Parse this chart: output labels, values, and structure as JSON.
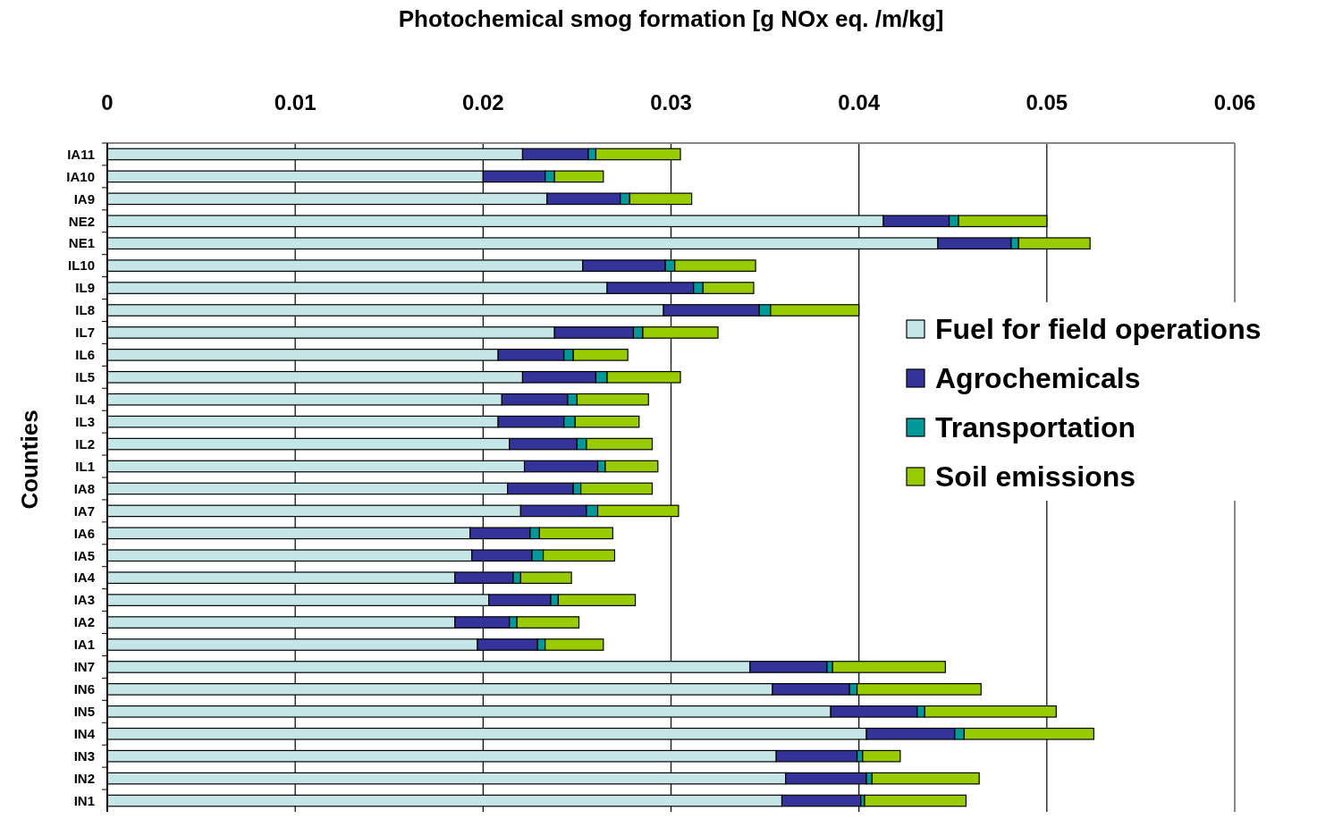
{
  "chart_data": {
    "type": "bar",
    "orientation": "horizontal",
    "stacked": true,
    "title": "Photochemical smog formation  [g NOx eq. /m/kg]",
    "ylabel": "Counties",
    "categories": [
      "IA11",
      "IA10",
      "IA9",
      "NE2",
      "NE1",
      "IL10",
      "IL9",
      "IL8",
      "IL7",
      "IL6",
      "IL5",
      "IL4",
      "IL3",
      "IL2",
      "IL1",
      "IA8",
      "IA7",
      "IA6",
      "IA5",
      "IA4",
      "IA3",
      "IA2",
      "IA1",
      "IN7",
      "IN6",
      "IN5",
      "IN4",
      "IN3",
      "IN2",
      "IN1"
    ],
    "series": [
      {
        "name": "Fuel for field operations",
        "color": "#c4e6e6",
        "values": [
          0.0221,
          0.02,
          0.0234,
          0.0413,
          0.0442,
          0.0253,
          0.0266,
          0.0296,
          0.0238,
          0.0208,
          0.0221,
          0.021,
          0.0208,
          0.0214,
          0.0222,
          0.0213,
          0.022,
          0.0193,
          0.0194,
          0.0185,
          0.0203,
          0.0185,
          0.0197,
          0.0342,
          0.0354,
          0.0385,
          0.0404,
          0.0356,
          0.0361,
          0.0359
        ]
      },
      {
        "name": "Agrochemicals",
        "color": "#333399",
        "values": [
          0.0035,
          0.0033,
          0.0039,
          0.0035,
          0.0039,
          0.0044,
          0.0046,
          0.0051,
          0.0042,
          0.0035,
          0.0039,
          0.0035,
          0.0035,
          0.0036,
          0.0039,
          0.0035,
          0.0035,
          0.0032,
          0.0032,
          0.0031,
          0.0033,
          0.0029,
          0.0032,
          0.0041,
          0.0041,
          0.0046,
          0.0047,
          0.0043,
          0.0043,
          0.0042
        ]
      },
      {
        "name": "Transportation",
        "color": "#009999",
        "values": [
          0.0004,
          0.0005,
          0.0005,
          0.0005,
          0.0004,
          0.0005,
          0.0005,
          0.0006,
          0.0005,
          0.0005,
          0.0006,
          0.0005,
          0.0006,
          0.0005,
          0.0004,
          0.0004,
          0.0006,
          0.0005,
          0.0006,
          0.0004,
          0.0004,
          0.0004,
          0.0004,
          0.0003,
          0.0004,
          0.0004,
          0.0005,
          0.0003,
          0.0003,
          0.0002
        ]
      },
      {
        "name": "Soil emissions",
        "color": "#99cc00",
        "values": [
          0.0045,
          0.0026,
          0.0033,
          0.0047,
          0.0038,
          0.0043,
          0.0027,
          0.0047,
          0.004,
          0.0029,
          0.0039,
          0.0038,
          0.0034,
          0.0035,
          0.0028,
          0.0038,
          0.0043,
          0.0039,
          0.0038,
          0.0027,
          0.0041,
          0.0033,
          0.0031,
          0.006,
          0.0066,
          0.007,
          0.0069,
          0.002,
          0.0057,
          0.0054
        ]
      }
    ],
    "xlim": [
      0,
      0.06
    ],
    "xticks": [
      {
        "value": 0,
        "label": "0"
      },
      {
        "value": 0.01,
        "label": "0.01"
      },
      {
        "value": 0.02,
        "label": "0.02"
      },
      {
        "value": 0.03,
        "label": "0.03"
      },
      {
        "value": 0.04,
        "label": "0.04"
      },
      {
        "value": 0.05,
        "label": "0.05"
      },
      {
        "value": 0.06,
        "label": "0.06"
      }
    ],
    "grid": "x",
    "legend": "right"
  }
}
